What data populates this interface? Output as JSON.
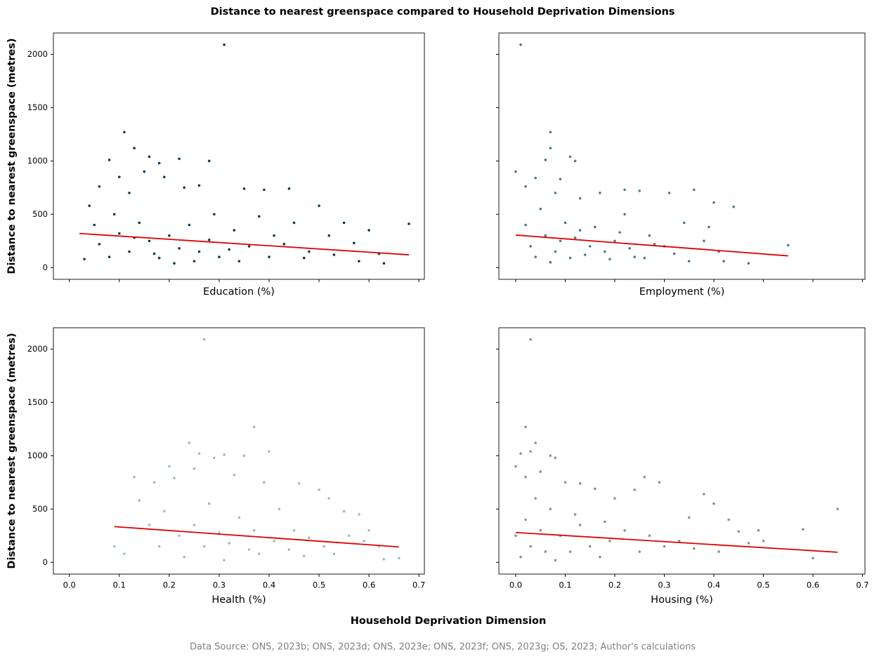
{
  "title": "Distance to nearest greenspace compared to Household Deprivation Dimensions",
  "xlabel": "Household Deprivation Dimension",
  "source": "Data Source: ONS, 2023b; ONS, 2023d; ONS, 2023e; ONS, 2023f; ONS, 2023g; OS, 2023; Author's calculations",
  "chart_data": [
    {
      "type": "scatter",
      "xlabel": "Education (%)",
      "ylabel": "Distance to nearest greenspace (metres)",
      "color": "#0b3b52",
      "x": [
        0.31,
        0.68,
        0.63,
        0.11,
        0.13,
        0.16,
        0.18,
        0.22,
        0.28,
        0.04,
        0.06,
        0.08,
        0.1,
        0.12,
        0.15,
        0.19,
        0.23,
        0.26,
        0.35,
        0.39,
        0.44,
        0.5,
        0.55,
        0.6,
        0.57,
        0.52,
        0.48,
        0.45,
        0.41,
        0.38,
        0.36,
        0.33,
        0.3,
        0.28,
        0.26,
        0.24,
        0.22,
        0.2,
        0.18,
        0.16,
        0.14,
        0.12,
        0.1,
        0.08,
        0.06,
        0.03,
        0.05,
        0.09,
        0.13,
        0.17,
        0.21,
        0.25,
        0.29,
        0.32,
        0.34,
        0.4,
        0.43,
        0.47,
        0.53,
        0.58,
        0.62
      ],
      "y": [
        2090,
        410,
        40,
        1270,
        1120,
        1040,
        980,
        1020,
        1000,
        580,
        760,
        1010,
        850,
        700,
        900,
        850,
        750,
        770,
        740,
        730,
        740,
        580,
        420,
        350,
        230,
        300,
        150,
        420,
        300,
        480,
        200,
        350,
        100,
        260,
        150,
        400,
        180,
        300,
        90,
        250,
        420,
        150,
        320,
        100,
        220,
        80,
        400,
        500,
        280,
        130,
        40,
        60,
        500,
        170,
        60,
        100,
        220,
        90,
        120,
        60,
        130
      ],
      "trend": {
        "color": "#e00000",
        "x": [
          0.02,
          0.68
        ],
        "y": [
          320,
          120
        ]
      },
      "xlim": [
        -0.032,
        0.711
      ],
      "ylim": [
        -110,
        2200
      ],
      "xticks": [
        {
          "value": 0,
          "label": "0.0"
        },
        0.1,
        0.2,
        0.3,
        0.4,
        0.5,
        0.6,
        0.7
      ],
      "yticks": [
        0,
        500,
        1000,
        1500,
        2000
      ],
      "xtick_labels": false,
      "ytick_labels": true
    },
    {
      "type": "scatter",
      "xlabel": "Employment (%)",
      "color": "#4a7a8c",
      "x": [
        0.01,
        0.07,
        0.07,
        0.11,
        0.12,
        0.0,
        0.02,
        0.04,
        0.06,
        0.08,
        0.09,
        0.13,
        0.17,
        0.22,
        0.25,
        0.31,
        0.36,
        0.4,
        0.44,
        0.55,
        0.47,
        0.42,
        0.38,
        0.34,
        0.3,
        0.27,
        0.24,
        0.22,
        0.2,
        0.18,
        0.16,
        0.14,
        0.12,
        0.1,
        0.08,
        0.06,
        0.04,
        0.02,
        0.03,
        0.05,
        0.07,
        0.09,
        0.11,
        0.13,
        0.15,
        0.19,
        0.21,
        0.23,
        0.26,
        0.28,
        0.32,
        0.35,
        0.39,
        0.41
      ],
      "y": [
        2090,
        1270,
        1120,
        1040,
        1000,
        900,
        760,
        840,
        1010,
        700,
        830,
        650,
        700,
        730,
        720,
        700,
        730,
        610,
        570,
        210,
        40,
        60,
        250,
        420,
        200,
        300,
        100,
        500,
        250,
        150,
        380,
        120,
        280,
        420,
        150,
        300,
        100,
        400,
        200,
        550,
        50,
        250,
        90,
        350,
        200,
        80,
        330,
        180,
        90,
        220,
        130,
        60,
        380,
        150
      ],
      "trend": {
        "color": "#e00000",
        "x": [
          0.0,
          0.55
        ],
        "y": [
          305,
          110
        ]
      },
      "xlim": [
        -0.034,
        0.705
      ],
      "ylim": [
        -110,
        2200
      ],
      "xticks": [
        {
          "value": 0,
          "label": "0.0"
        },
        0.1,
        0.2,
        0.3,
        0.4,
        0.5,
        0.6,
        0.7
      ],
      "yticks": [
        0,
        500,
        1000,
        1500,
        2000
      ],
      "xtick_labels": false,
      "ytick_labels": false
    },
    {
      "type": "scatter",
      "xlabel": "Health (%)",
      "ylabel": "Distance to nearest greenspace (metres)",
      "color": "#9bbfb3",
      "x": [
        0.27,
        0.37,
        0.24,
        0.4,
        0.26,
        0.31,
        0.35,
        0.29,
        0.2,
        0.13,
        0.17,
        0.21,
        0.25,
        0.33,
        0.39,
        0.46,
        0.5,
        0.52,
        0.55,
        0.58,
        0.6,
        0.62,
        0.66,
        0.63,
        0.09,
        0.11,
        0.14,
        0.16,
        0.18,
        0.19,
        0.22,
        0.23,
        0.25,
        0.27,
        0.28,
        0.3,
        0.31,
        0.32,
        0.34,
        0.36,
        0.37,
        0.38,
        0.41,
        0.42,
        0.44,
        0.45,
        0.47,
        0.48,
        0.51,
        0.53,
        0.56,
        0.59
      ],
      "y": [
        2090,
        1270,
        1120,
        1040,
        1020,
        1010,
        1000,
        980,
        900,
        800,
        750,
        790,
        880,
        820,
        750,
        740,
        680,
        600,
        480,
        450,
        300,
        150,
        40,
        30,
        150,
        80,
        580,
        350,
        150,
        480,
        250,
        50,
        350,
        150,
        550,
        280,
        20,
        180,
        420,
        120,
        300,
        80,
        200,
        500,
        120,
        300,
        60,
        230,
        150,
        80,
        250,
        200
      ],
      "trend": {
        "color": "#e00000",
        "x": [
          0.09,
          0.66
        ],
        "y": [
          335,
          145
        ]
      },
      "xlim": [
        -0.032,
        0.711
      ],
      "ylim": [
        -110,
        2200
      ],
      "xticks": [
        {
          "value": 0,
          "label": "0.0"
        },
        0.1,
        0.2,
        0.3,
        0.4,
        0.5,
        0.6,
        0.7
      ],
      "yticks": [
        0,
        500,
        1000,
        1500,
        2000
      ],
      "xtick_labels": true,
      "ytick_labels": true
    },
    {
      "type": "scatter",
      "xlabel": "Housing (%)",
      "color": "#8f918e",
      "x": [
        0.03,
        0.02,
        0.04,
        0.01,
        0.03,
        0.07,
        0.08,
        0.0,
        0.02,
        0.05,
        0.1,
        0.13,
        0.2,
        0.26,
        0.29,
        0.24,
        0.16,
        0.38,
        0.4,
        0.49,
        0.5,
        0.58,
        0.6,
        0.65,
        0.45,
        0.43,
        0.35,
        0.33,
        0.3,
        0.27,
        0.25,
        0.22,
        0.19,
        0.17,
        0.15,
        0.13,
        0.11,
        0.09,
        0.07,
        0.06,
        0.05,
        0.04,
        0.03,
        0.02,
        0.01,
        0.0,
        0.08,
        0.12,
        0.18,
        0.36,
        0.41,
        0.47
      ],
      "y": [
        2090,
        1270,
        1120,
        1020,
        1040,
        1000,
        980,
        900,
        800,
        850,
        750,
        740,
        600,
        800,
        750,
        680,
        690,
        640,
        550,
        300,
        200,
        310,
        40,
        500,
        290,
        400,
        420,
        200,
        150,
        250,
        100,
        300,
        200,
        50,
        150,
        350,
        100,
        250,
        500,
        100,
        300,
        600,
        150,
        400,
        50,
        250,
        20,
        450,
        380,
        130,
        100,
        180
      ],
      "trend": {
        "color": "#e00000",
        "x": [
          0.0,
          0.65
        ],
        "y": [
          280,
          95
        ]
      },
      "xlim": [
        -0.034,
        0.705
      ],
      "ylim": [
        -110,
        2200
      ],
      "xticks": [
        {
          "value": 0,
          "label": "0.0"
        },
        0.1,
        0.2,
        0.3,
        0.4,
        0.5,
        0.6,
        0.7
      ],
      "yticks": [
        0,
        500,
        1000,
        1500,
        2000
      ],
      "xtick_labels": true,
      "ytick_labels": false
    }
  ]
}
